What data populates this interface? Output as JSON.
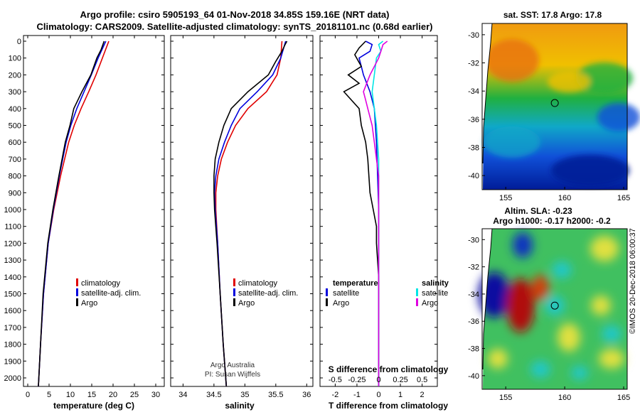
{
  "title_line1": "Argo profile: csiro 5905193_64 01-Nov-2018 34.85S 159.16E (NRT data)",
  "title_line2": "Climatology: CARS2009. Satellite-adjusted climatology: synTS_20181101.nc (0.68d earlier)",
  "credit": "©IMOS 20-Dec-2018 06:00:37",
  "attribution": {
    "line1": "Argo Australia",
    "line2": "PI: Susan Wijffels"
  },
  "colors": {
    "climatology": "#e00000",
    "satellite": "#0000dd",
    "argo": "#000000",
    "sal_satellite": "#00e5e5",
    "sal_argo": "#e000e0"
  },
  "chart_data": [
    {
      "type": "line",
      "name": "temperature profile",
      "xlabel": "temperature (deg C)",
      "ylabel": "",
      "xlim": [
        -1,
        32
      ],
      "ylim": [
        2060,
        0
      ],
      "xticks": [
        0,
        5,
        10,
        15,
        20,
        25,
        30
      ],
      "yticks": [
        0,
        100,
        200,
        300,
        400,
        500,
        600,
        700,
        800,
        900,
        1000,
        1100,
        1200,
        1300,
        1400,
        1500,
        1600,
        1700,
        1800,
        1900,
        2000
      ],
      "legend": [
        "climatology",
        "satellite-adj. clim.",
        "Argo"
      ],
      "series": [
        {
          "name": "climatology",
          "depth": [
            0,
            100,
            200,
            300,
            400,
            500,
            600,
            800,
            1000,
            1200,
            1500,
            1800,
            2050
          ],
          "values": [
            19,
            17.5,
            16,
            14.3,
            12.5,
            10.9,
            9.6,
            7.7,
            6.1,
            4.8,
            3.7,
            3.0,
            2.5
          ]
        },
        {
          "name": "satellite-adj. clim.",
          "depth": [
            0,
            100,
            200,
            300,
            400,
            500,
            600,
            800,
            1000,
            1200,
            1500,
            1800,
            2050
          ],
          "values": [
            18.3,
            16.5,
            14.9,
            13.2,
            11.5,
            10.1,
            9.0,
            7.4,
            6.0,
            4.8,
            3.7,
            3.0,
            2.5
          ]
        },
        {
          "name": "Argo",
          "depth": [
            0,
            50,
            100,
            200,
            300,
            400,
            500,
            600,
            800,
            1000,
            1200,
            1500,
            1800,
            2050
          ],
          "values": [
            17.9,
            17.2,
            16.2,
            14.8,
            12.7,
            10.8,
            9.9,
            8.8,
            7.3,
            5.9,
            4.7,
            3.6,
            3.0,
            2.5
          ]
        }
      ]
    },
    {
      "type": "line",
      "name": "salinity profile",
      "xlabel": "salinity",
      "xlim": [
        33.8,
        36.1
      ],
      "xticks": [
        34,
        34.5,
        35,
        35.5,
        36
      ],
      "legend": [
        "climatology",
        "satellite-adj. clim.",
        "Argo"
      ],
      "series": [
        {
          "name": "climatology",
          "depth": [
            0,
            100,
            200,
            300,
            400,
            500,
            600,
            700,
            800,
            900,
            1000,
            1200,
            1500,
            1800,
            2050
          ],
          "values": [
            35.6,
            35.58,
            35.52,
            35.35,
            35.05,
            34.85,
            34.72,
            34.62,
            34.56,
            34.53,
            34.53,
            34.56,
            34.6,
            34.65,
            34.7
          ]
        },
        {
          "name": "satellite-adj. clim.",
          "depth": [
            0,
            100,
            200,
            300,
            400,
            500,
            600,
            700,
            800,
            900,
            1000,
            1200,
            1500,
            1800,
            2050
          ],
          "values": [
            35.66,
            35.58,
            35.45,
            35.2,
            34.92,
            34.78,
            34.67,
            34.58,
            34.53,
            34.51,
            34.52,
            34.56,
            34.6,
            34.65,
            34.7
          ]
        },
        {
          "name": "Argo",
          "depth": [
            0,
            20,
            60,
            120,
            200,
            300,
            400,
            500,
            600,
            700,
            800,
            900,
            1000,
            1200,
            1500,
            1800,
            2050
          ],
          "values": [
            35.68,
            35.65,
            35.6,
            35.5,
            35.38,
            35.05,
            34.78,
            34.66,
            34.58,
            34.52,
            34.5,
            34.5,
            34.51,
            34.55,
            34.6,
            34.65,
            34.7
          ]
        }
      ]
    },
    {
      "type": "line",
      "name": "difference from climatology",
      "xlabel": "T difference from climatology",
      "top_label": "S difference from climatology",
      "xlim": [
        -2.7,
        2.7
      ],
      "xticks": [
        -2,
        -1,
        0,
        1,
        2
      ],
      "top_ticks": [
        "-0.5",
        "-0.25",
        "0",
        "0.25",
        "0.5"
      ],
      "top_tick_values": [
        -2,
        -1,
        0,
        1,
        2
      ],
      "legend_left_title": "temperature",
      "legend_right_title": "salinity",
      "legend_left": [
        "satellite",
        "Argo"
      ],
      "legend_right": [
        "satellite",
        "Argo"
      ],
      "series": [
        {
          "name": "temperature satellite",
          "depth": [
            0,
            20,
            60,
            100,
            150,
            200,
            300,
            400,
            600,
            800,
            1000,
            1500,
            2050
          ],
          "values": [
            -0.6,
            -0.3,
            -0.4,
            -0.9,
            -0.8,
            -0.7,
            -0.4,
            -0.2,
            -0.1,
            -0.05,
            0,
            0,
            0
          ]
        },
        {
          "name": "temperature Argo",
          "depth": [
            0,
            40,
            80,
            150,
            200,
            250,
            300,
            400,
            500,
            600,
            700,
            900,
            1100,
            1200,
            1400,
            1600,
            1800,
            2050
          ],
          "values": [
            -0.6,
            -0.9,
            -1.1,
            -0.8,
            -1.4,
            -0.9,
            -1.6,
            -0.9,
            -0.8,
            -0.6,
            -0.5,
            -0.4,
            -0.1,
            -0.1,
            0,
            0,
            0,
            0
          ]
        },
        {
          "name": "salinity satellite",
          "depth": [
            0,
            20,
            60,
            100,
            200,
            300,
            400,
            500,
            700,
            900,
            1100,
            1300,
            1500,
            1800,
            2050
          ],
          "values": [
            0.2,
            0,
            0.1,
            -0.1,
            -0.2,
            -0.3,
            -0.2,
            -0.1,
            0,
            0,
            0,
            0,
            0,
            0,
            0
          ]
        },
        {
          "name": "salinity Argo",
          "depth": [
            0,
            20,
            60,
            100,
            200,
            300,
            350,
            400,
            500,
            600,
            700,
            800,
            900,
            1000,
            1100,
            1300,
            1500,
            1800,
            2050
          ],
          "values": [
            0.4,
            0.2,
            0.1,
            0,
            -0.4,
            -0.7,
            -0.6,
            -0.5,
            -0.3,
            -0.2,
            -0.1,
            0,
            0,
            0,
            0,
            0,
            0,
            0,
            0
          ]
        }
      ]
    },
    {
      "type": "heatmap",
      "name": "SST map",
      "title": "sat. SST: 17.8 Argo: 17.8",
      "xticks": [
        155,
        160,
        165
      ],
      "yticks": [
        -30,
        -32,
        -34,
        -36,
        -38,
        -40
      ],
      "lon_range": [
        153,
        165.3
      ],
      "lat_range": [
        -41,
        -29.2
      ],
      "marker": {
        "lon": 159.16,
        "lat": -34.85
      }
    },
    {
      "type": "heatmap",
      "name": "SLA map",
      "title_line1": "Altim. SLA: -0.23",
      "title_line2": "Argo h1000: -0.17 h2000: -0.2",
      "xticks": [
        155,
        160,
        165
      ],
      "yticks": [
        -30,
        -32,
        -34,
        -36,
        -38,
        -40
      ],
      "lon_range": [
        153,
        165.3
      ],
      "lat_range": [
        -41,
        -29.2
      ],
      "marker": {
        "lon": 159.16,
        "lat": -34.85
      }
    }
  ]
}
